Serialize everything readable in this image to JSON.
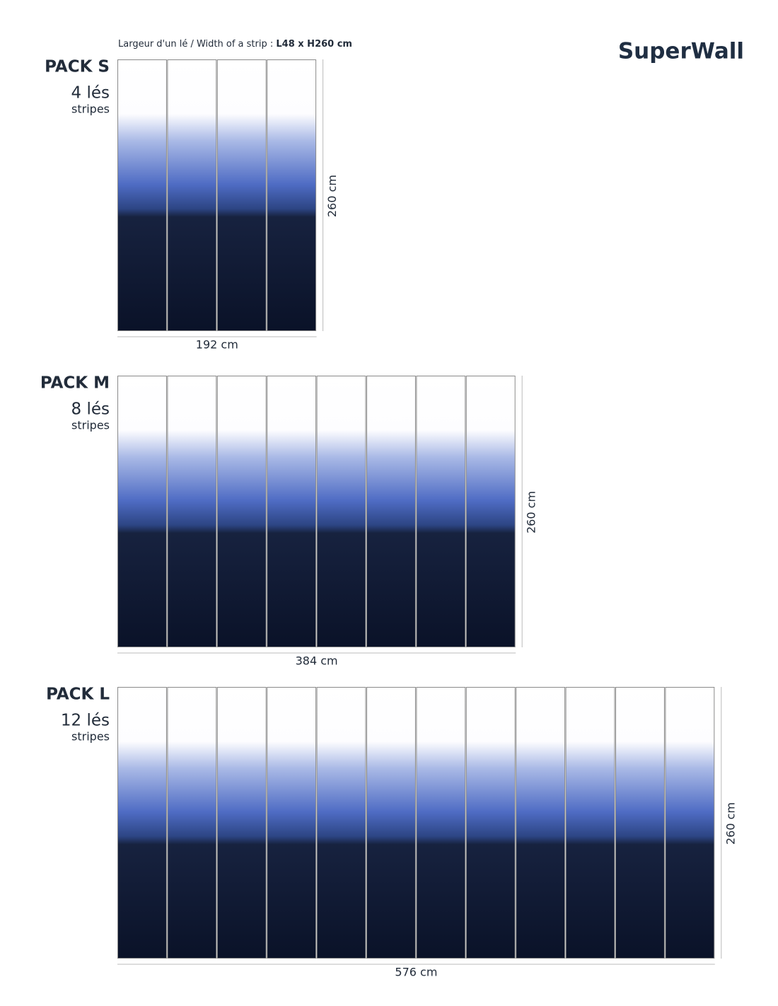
{
  "header": {
    "note": "Largeur d'un lé / Width of a strip : ",
    "note_bold": "L48 x H260 cm",
    "logo": "SuperWall"
  },
  "packs": [
    {
      "name": "PACK S",
      "count": "4 lés",
      "unit": "stripes",
      "width": "192 cm",
      "height": "260 cm"
    },
    {
      "name": "PACK M",
      "count": "8 lés",
      "unit": "stripes",
      "width": "384 cm",
      "height": "260 cm"
    },
    {
      "name": "PACK L",
      "count": "12 lés",
      "unit": "stripes",
      "width": "576 cm",
      "height": "260 cm"
    }
  ]
}
